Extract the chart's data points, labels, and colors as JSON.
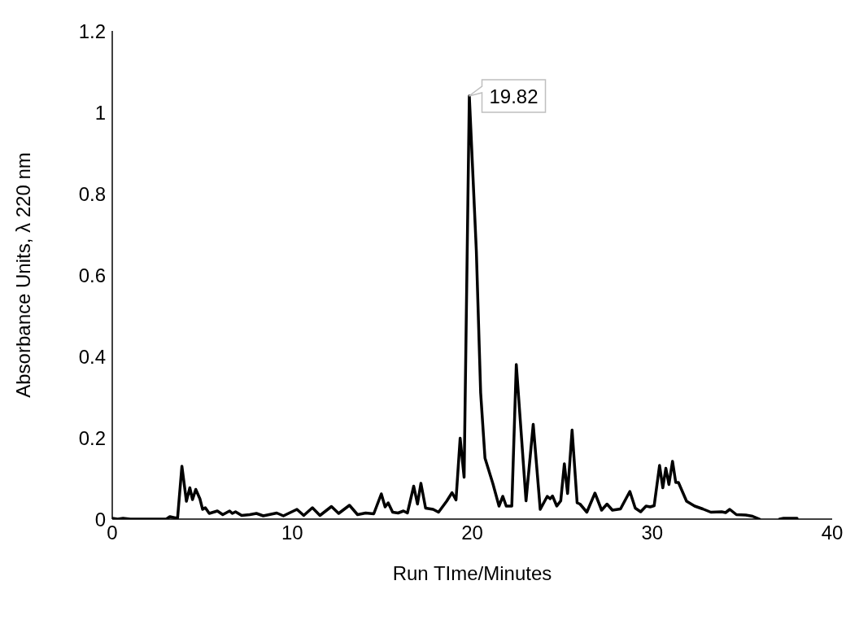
{
  "chart_data": {
    "type": "line",
    "xlabel": "Run TIme/Minutes",
    "ylabel": "Absorbance Units, λ 220 nm",
    "xlim": [
      0,
      40
    ],
    "xticks": [
      0,
      10,
      20,
      30,
      40
    ],
    "ylim": [
      0,
      1.2
    ],
    "yticks": [
      0,
      0.2,
      0.4,
      0.6,
      0.8,
      1,
      1.2
    ],
    "marker": "none",
    "line_style": "solid",
    "annotations": [
      {
        "text": "19.82",
        "x": 19.82,
        "y": 1.04
      }
    ],
    "series": [
      {
        "color": "#000000",
        "x": [
          0,
          0.3,
          0.6,
          1.0,
          2.0,
          3.0,
          3.2,
          3.5,
          3.63,
          3.87,
          4.12,
          4.31,
          4.46,
          4.64,
          4.87,
          5.02,
          5.17,
          5.39,
          5.84,
          6.14,
          6.52,
          6.67,
          6.85,
          7.19,
          7.64,
          8.01,
          8.39,
          9.14,
          9.51,
          10.26,
          10.64,
          11.12,
          11.54,
          12.18,
          12.58,
          12.88,
          13.18,
          13.63,
          14.08,
          14.53,
          14.95,
          15.16,
          15.33,
          15.58,
          15.88,
          16.18,
          16.4,
          16.75,
          16.96,
          17.15,
          17.41,
          17.83,
          18.13,
          18.58,
          18.88,
          19.1,
          19.33,
          19.55,
          19.84,
          20.23,
          20.47,
          20.71,
          21.15,
          21.49,
          21.7,
          21.89,
          22.2,
          22.45,
          22.99,
          23.39,
          23.78,
          24.17,
          24.33,
          24.46,
          24.7,
          24.92,
          25.12,
          25.3,
          25.55,
          25.83,
          25.99,
          26.37,
          26.82,
          27.19,
          27.49,
          27.79,
          28.24,
          28.76,
          29.06,
          29.36,
          29.66,
          29.89,
          30.11,
          30.41,
          30.59,
          30.76,
          30.93,
          31.13,
          31.31,
          31.46,
          31.91,
          32.36,
          32.81,
          33.26,
          33.86,
          34.08,
          34.31,
          34.68,
          35.2,
          35.58,
          35.96,
          36.5,
          37.08,
          37.3,
          38.05
        ],
        "values": [
          0.002,
          0,
          0.002,
          0,
          0,
          0,
          0.006,
          0.003,
          0.003,
          0.13,
          0.044,
          0.077,
          0.048,
          0.073,
          0.05,
          0.024,
          0.028,
          0.014,
          0.02,
          0.011,
          0.02,
          0.014,
          0.018,
          0.009,
          0.011,
          0.014,
          0.008,
          0.015,
          0.008,
          0.024,
          0.009,
          0.028,
          0.009,
          0.031,
          0.014,
          0.024,
          0.034,
          0.011,
          0.015,
          0.013,
          0.062,
          0.03,
          0.04,
          0.017,
          0.015,
          0.02,
          0.015,
          0.081,
          0.037,
          0.088,
          0.027,
          0.024,
          0.017,
          0.044,
          0.065,
          0.047,
          0.199,
          0.103,
          1.04,
          0.659,
          0.31,
          0.15,
          0.087,
          0.032,
          0.056,
          0.032,
          0.032,
          0.38,
          0.045,
          0.233,
          0.024,
          0.056,
          0.05,
          0.057,
          0.032,
          0.045,
          0.136,
          0.063,
          0.219,
          0.04,
          0.037,
          0.017,
          0.064,
          0.022,
          0.037,
          0.022,
          0.025,
          0.068,
          0.027,
          0.018,
          0.032,
          0.03,
          0.033,
          0.132,
          0.077,
          0.125,
          0.085,
          0.142,
          0.09,
          0.09,
          0.044,
          0.032,
          0.025,
          0.017,
          0.018,
          0.016,
          0.024,
          0.011,
          0.01,
          0.007,
          0,
          null,
          0,
          0.002,
          0.002
        ]
      }
    ]
  }
}
